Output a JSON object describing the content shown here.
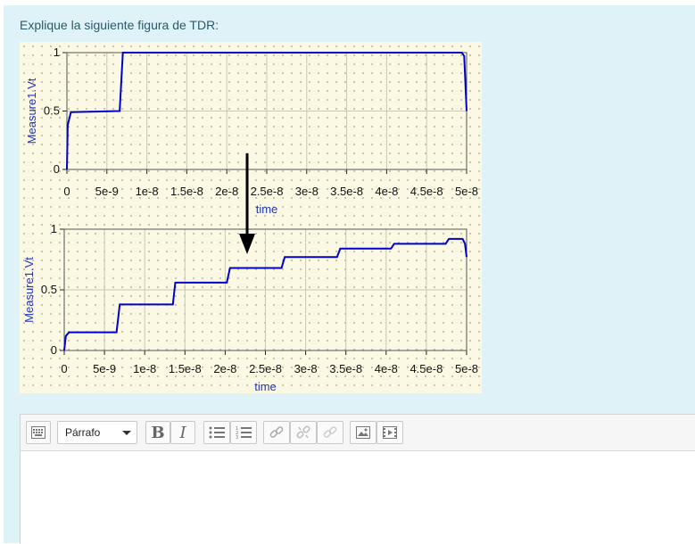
{
  "question": {
    "text": "Explique la siguiente figura de TDR:"
  },
  "figure": {
    "x_ticks": [
      "0",
      "5e-9",
      "1e-8",
      "1.5e-8",
      "2e-8",
      "2.5e-8",
      "3e-8",
      "3.5e-8",
      "4e-8",
      "4.5e-8",
      "5e-8"
    ],
    "y_ticks": [
      "0",
      "0.5",
      "1"
    ],
    "xlabel": "time",
    "ylabel": "Measure1.Vt",
    "line_color": "#0000cc",
    "background_color": "#fbf9e4"
  },
  "chart_data": [
    {
      "type": "line",
      "xlabel": "time",
      "ylabel": "Measure1.Vt",
      "xlim": [
        0,
        5e-08
      ],
      "ylim": [
        0,
        1
      ],
      "grid": true,
      "series": [
        {
          "x": [
            0,
            1e-10,
            5e-10,
            6.6e-09,
            7e-09,
            4.94e-08,
            4.97e-08,
            5e-08
          ],
          "y": [
            0,
            0.38,
            0.49,
            0.5,
            1.0,
            1.0,
            0.97,
            0.5
          ]
        }
      ]
    },
    {
      "type": "line",
      "xlabel": "time",
      "ylabel": "Measure1.Vt",
      "xlim": [
        0,
        5e-08
      ],
      "ylim": [
        0,
        1
      ],
      "grid": true,
      "series": [
        {
          "x": [
            0,
            2e-10,
            6e-10,
            6.5e-09,
            6.9e-09,
            1.35e-08,
            1.38e-08,
            2.02e-08,
            2.06e-08,
            2.7e-08,
            2.74e-08,
            3.39e-08,
            3.43e-08,
            4.06e-08,
            4.1e-08,
            4.74e-08,
            4.78e-08,
            4.95e-08,
            4.98e-08,
            5e-08
          ],
          "y": [
            0,
            0.12,
            0.15,
            0.15,
            0.38,
            0.38,
            0.56,
            0.56,
            0.68,
            0.68,
            0.77,
            0.77,
            0.84,
            0.84,
            0.88,
            0.88,
            0.92,
            0.92,
            0.88,
            0.77
          ]
        }
      ]
    }
  ],
  "editor": {
    "format_select": "Párrafo",
    "bold": "B",
    "italic": "I"
  }
}
